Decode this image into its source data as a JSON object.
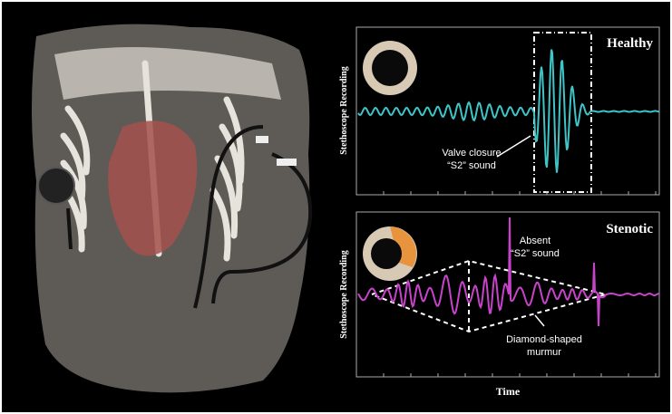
{
  "panels": [
    {
      "title": "Healthy",
      "y_label": "Stethoscope Recording",
      "annotations": [
        "Valve closure",
        "“S2” sound"
      ]
    },
    {
      "title": "Stenotic",
      "y_label": "Stethoscope Recording",
      "annotations": [
        "Absent",
        "“S2” sound",
        "Diamond-shaped",
        "murmur"
      ]
    }
  ],
  "x_label": "Time"
}
